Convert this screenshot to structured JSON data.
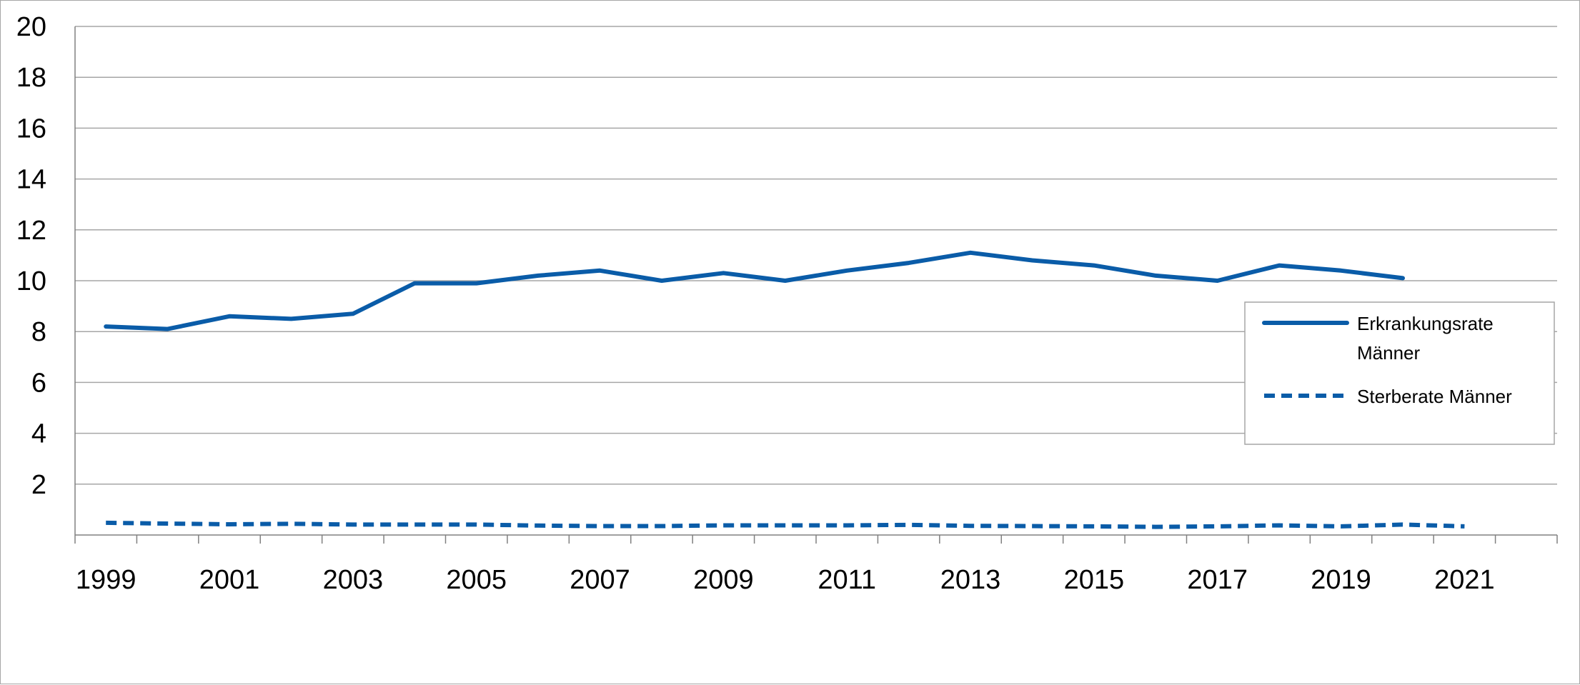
{
  "chart_data": {
    "type": "line",
    "title": "",
    "xlabel": "",
    "ylabel": "",
    "x": [
      1999,
      2000,
      2001,
      2002,
      2003,
      2004,
      2005,
      2006,
      2007,
      2008,
      2009,
      2010,
      2011,
      2012,
      2013,
      2014,
      2015,
      2016,
      2017,
      2018,
      2019,
      2020,
      2021,
      2022
    ],
    "x_tick_labels": [
      "1999",
      "2001",
      "2003",
      "2005",
      "2007",
      "2009",
      "2011",
      "2013",
      "2015",
      "2017",
      "2019",
      "2021"
    ],
    "y_tick_labels": [
      "2",
      "4",
      "6",
      "8",
      "10",
      "12",
      "14",
      "16",
      "18",
      "20"
    ],
    "ylim": [
      0,
      20
    ],
    "grid": true,
    "legend_position": "right",
    "series": [
      {
        "name": "Erkrankungsrate Männer",
        "legend_lines": [
          "Erkrankungsrate",
          "Männer"
        ],
        "style": "solid",
        "color": "#0a5ca8",
        "x": [
          1999,
          2000,
          2001,
          2002,
          2003,
          2004,
          2005,
          2006,
          2007,
          2008,
          2009,
          2010,
          2011,
          2012,
          2013,
          2014,
          2015,
          2016,
          2017,
          2018,
          2019,
          2020
        ],
        "values": [
          8.2,
          8.1,
          8.6,
          8.5,
          8.7,
          9.9,
          9.9,
          10.2,
          10.4,
          10.0,
          10.3,
          10.0,
          10.4,
          10.7,
          11.1,
          10.8,
          10.6,
          10.2,
          10.0,
          10.6,
          10.4,
          10.1
        ]
      },
      {
        "name": "Sterberate Männer",
        "legend_lines": [
          "Sterberate Männer"
        ],
        "style": "dashed",
        "color": "#0a5ca8",
        "x": [
          1999,
          2000,
          2001,
          2002,
          2003,
          2004,
          2005,
          2006,
          2007,
          2008,
          2009,
          2010,
          2011,
          2012,
          2013,
          2014,
          2015,
          2016,
          2017,
          2018,
          2019,
          2020,
          2021
        ],
        "values": [
          0.48,
          0.45,
          0.42,
          0.44,
          0.41,
          0.41,
          0.41,
          0.37,
          0.35,
          0.35,
          0.38,
          0.38,
          0.38,
          0.4,
          0.36,
          0.35,
          0.34,
          0.32,
          0.34,
          0.38,
          0.34,
          0.41,
          0.34
        ]
      }
    ],
    "colors": {
      "gridline": "#a6a6a6",
      "axis": "#808080",
      "text": "#000000",
      "border": "#a6a6a6"
    }
  }
}
